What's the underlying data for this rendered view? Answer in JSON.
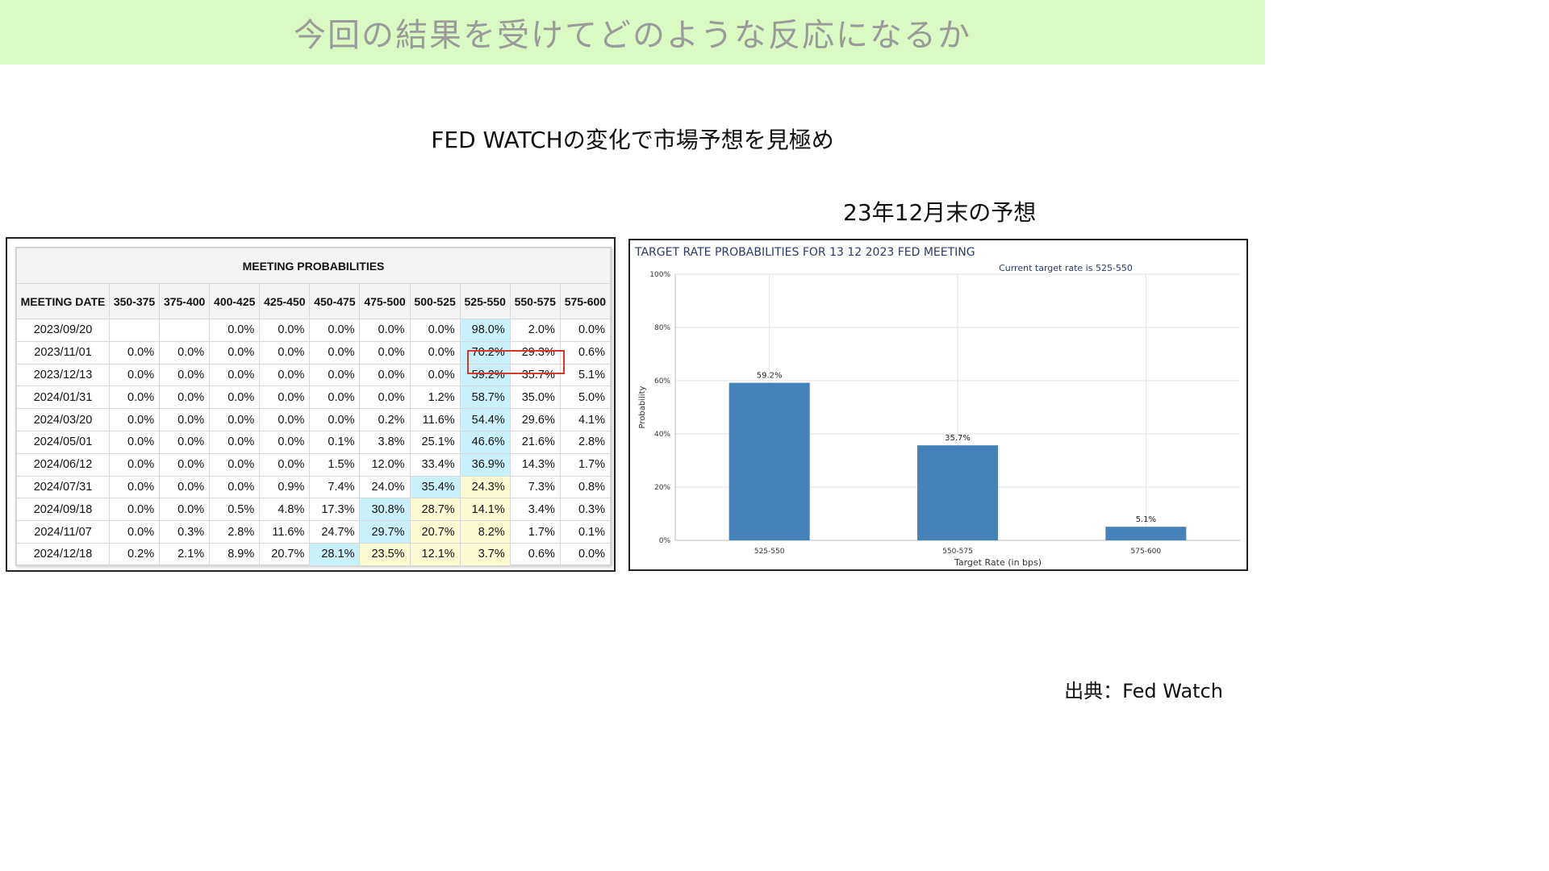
{
  "header": {
    "title": "今回の結果を受けてどのような反応になるか"
  },
  "subtitle": "FED WATCHの変化で市場予想を見極め",
  "chart_heading": "23年12月末の予想",
  "source": "出典：Fed Watch",
  "table": {
    "caption": "MEETING PROBABILITIES",
    "columns": [
      "MEETING DATE",
      "350-375",
      "375-400",
      "400-425",
      "425-450",
      "450-475",
      "475-500",
      "500-525",
      "525-550",
      "550-575",
      "575-600"
    ],
    "rows": [
      {
        "date": "2023/09/20",
        "values": [
          "",
          "",
          "0.0%",
          "0.0%",
          "0.0%",
          "0.0%",
          "0.0%",
          "98.0%",
          "2.0%",
          "0.0%"
        ]
      },
      {
        "date": "2023/11/01",
        "values": [
          "0.0%",
          "0.0%",
          "0.0%",
          "0.0%",
          "0.0%",
          "0.0%",
          "0.0%",
          "70.2%",
          "29.3%",
          "0.6%"
        ]
      },
      {
        "date": "2023/12/13",
        "values": [
          "0.0%",
          "0.0%",
          "0.0%",
          "0.0%",
          "0.0%",
          "0.0%",
          "0.0%",
          "59.2%",
          "35.7%",
          "5.1%"
        ]
      },
      {
        "date": "2024/01/31",
        "values": [
          "0.0%",
          "0.0%",
          "0.0%",
          "0.0%",
          "0.0%",
          "0.0%",
          "1.2%",
          "58.7%",
          "35.0%",
          "5.0%"
        ]
      },
      {
        "date": "2024/03/20",
        "values": [
          "0.0%",
          "0.0%",
          "0.0%",
          "0.0%",
          "0.0%",
          "0.2%",
          "11.6%",
          "54.4%",
          "29.6%",
          "4.1%"
        ]
      },
      {
        "date": "2024/05/01",
        "values": [
          "0.0%",
          "0.0%",
          "0.0%",
          "0.0%",
          "0.1%",
          "3.8%",
          "25.1%",
          "46.6%",
          "21.6%",
          "2.8%"
        ]
      },
      {
        "date": "2024/06/12",
        "values": [
          "0.0%",
          "0.0%",
          "0.0%",
          "0.0%",
          "1.5%",
          "12.0%",
          "33.4%",
          "36.9%",
          "14.3%",
          "1.7%"
        ]
      },
      {
        "date": "2024/07/31",
        "values": [
          "0.0%",
          "0.0%",
          "0.0%",
          "0.9%",
          "7.4%",
          "24.0%",
          "35.4%",
          "24.3%",
          "7.3%",
          "0.8%"
        ]
      },
      {
        "date": "2024/09/18",
        "values": [
          "0.0%",
          "0.0%",
          "0.5%",
          "4.8%",
          "17.3%",
          "30.8%",
          "28.7%",
          "14.1%",
          "3.4%",
          "0.3%"
        ]
      },
      {
        "date": "2024/11/07",
        "values": [
          "0.0%",
          "0.3%",
          "2.8%",
          "11.6%",
          "24.7%",
          "29.7%",
          "20.7%",
          "8.2%",
          "1.7%",
          "0.1%"
        ]
      },
      {
        "date": "2024/12/18",
        "values": [
          "0.2%",
          "2.1%",
          "8.9%",
          "20.7%",
          "28.1%",
          "23.5%",
          "12.1%",
          "3.7%",
          "0.6%",
          "0.0%"
        ]
      }
    ],
    "cell_colors": {
      "cyan": [
        [
          0,
          7
        ],
        [
          1,
          7
        ],
        [
          2,
          7
        ],
        [
          3,
          7
        ],
        [
          4,
          7
        ],
        [
          5,
          7
        ],
        [
          6,
          7
        ],
        [
          7,
          6
        ],
        [
          8,
          5
        ],
        [
          9,
          5
        ],
        [
          10,
          4
        ]
      ],
      "yellow": [
        [
          7,
          7
        ],
        [
          8,
          6
        ],
        [
          8,
          7
        ],
        [
          9,
          6
        ],
        [
          9,
          7
        ],
        [
          10,
          5
        ],
        [
          10,
          6
        ],
        [
          10,
          7
        ]
      ],
      "cyan_hex": "#c9f1fb",
      "yellow_hex": "#fdfbd2",
      "highlight_hex": "#d33a2a"
    },
    "highlighted_cells": [
      [
        1,
        7
      ],
      [
        1,
        8
      ]
    ]
  },
  "chart_data": {
    "type": "bar",
    "title": "TARGET RATE PROBABILITIES FOR 13 12 2023 FED MEETING",
    "subtitle": "Current target rate is 525-550",
    "categories": [
      "525-550",
      "550-575",
      "575-600"
    ],
    "values": [
      59.2,
      35.7,
      5.1
    ],
    "data_labels": [
      "59.2%",
      "35.7%",
      "5.1%"
    ],
    "xlabel": "Target Rate (in bps)",
    "ylabel": "Probability",
    "ylim": [
      0,
      100
    ],
    "yticks": [
      0,
      20,
      40,
      60,
      80,
      100
    ],
    "ytick_labels": [
      "0%",
      "20%",
      "40%",
      "60%",
      "80%",
      "100%"
    ],
    "grid": true,
    "bar_color": "#4582b9",
    "title_color": "#2b3a67"
  }
}
